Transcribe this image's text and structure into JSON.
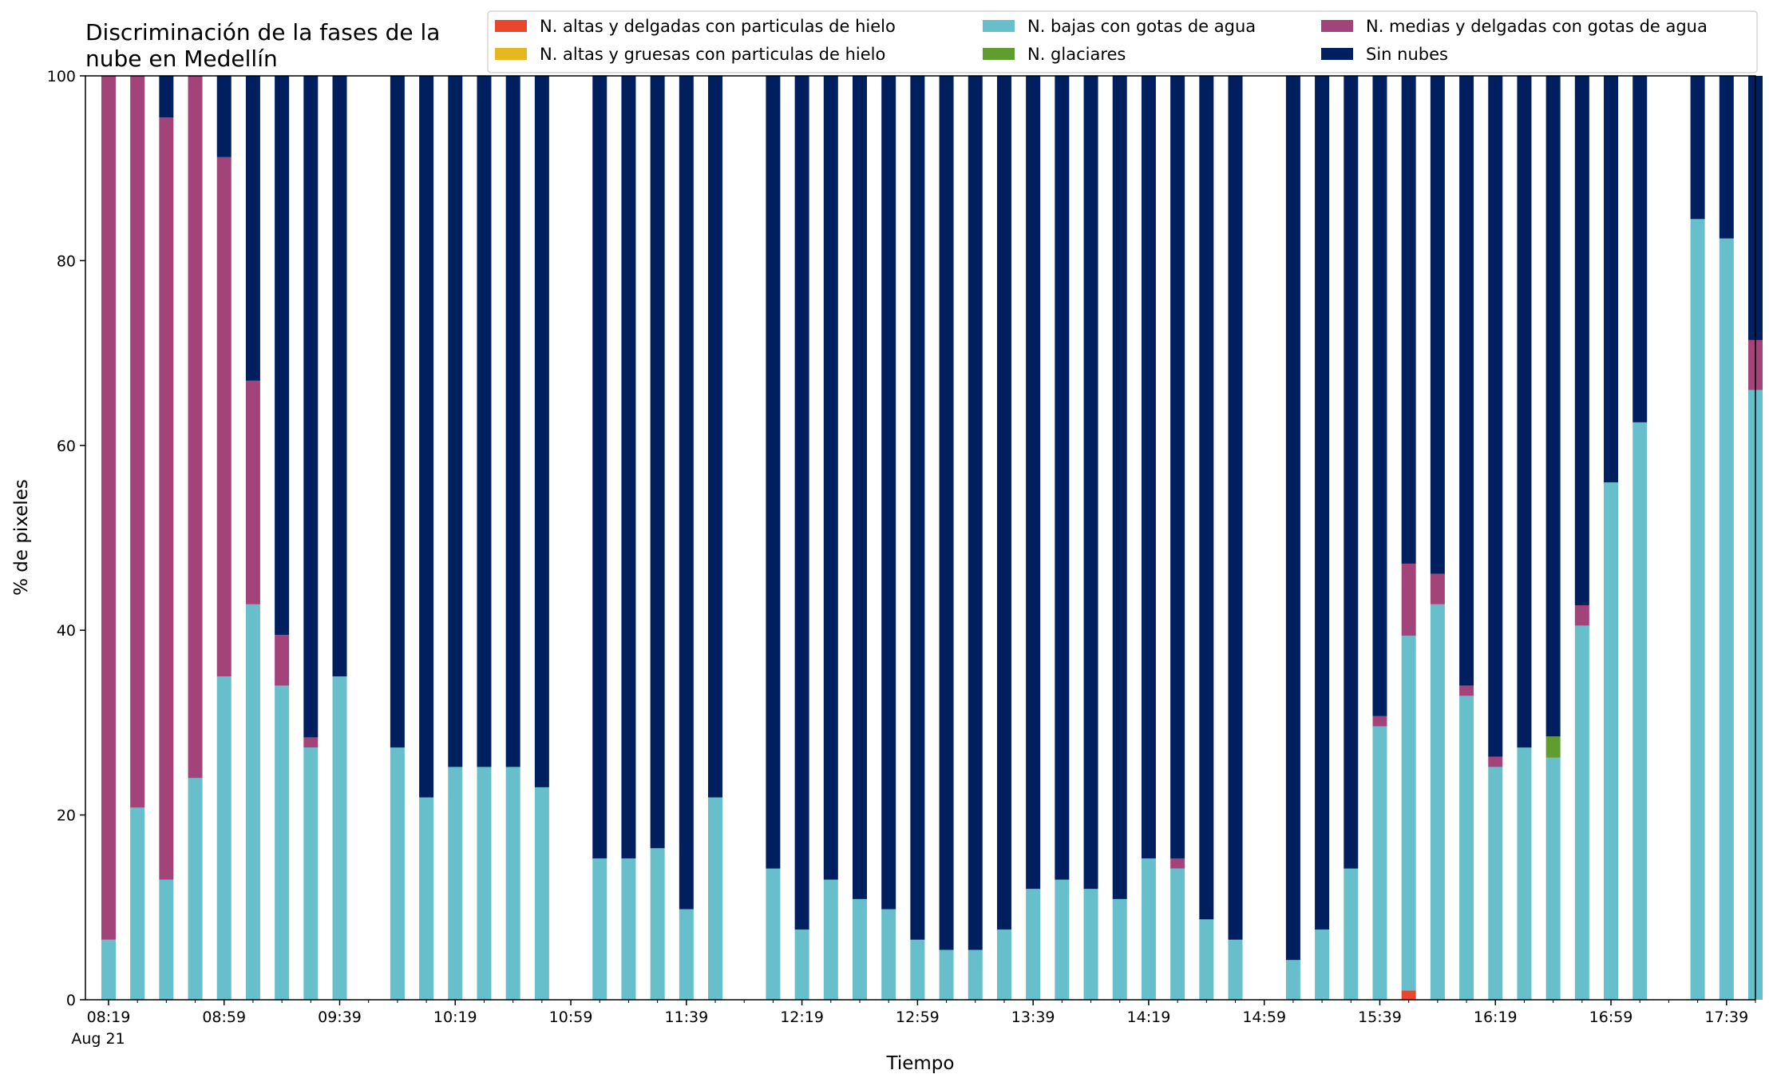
{
  "chart_data": {
    "type": "bar",
    "stacked": true,
    "title_lines": [
      "Discriminación de la fases de la",
      "nube en Medellín"
    ],
    "xlabel": "Tiempo",
    "ylabel": "% de pixeles",
    "ylim": [
      0,
      100
    ],
    "yticks": [
      0,
      20,
      40,
      60,
      80,
      100
    ],
    "grid": false,
    "legend_position": "top-right",
    "x_start_time": "08:19",
    "x_date_label": "Aug 21",
    "x_tick_labels": [
      "08:19",
      "08:59",
      "09:39",
      "10:19",
      "10:59",
      "11:39",
      "12:19",
      "12:59",
      "13:39",
      "14:19",
      "14:59",
      "15:39",
      "16:19",
      "16:59",
      "17:39"
    ],
    "x_time_range": [
      "08:11",
      "17:49"
    ],
    "x": [
      "08:19",
      "08:29",
      "08:39",
      "08:49",
      "08:59",
      "09:09",
      "09:19",
      "09:29",
      "09:39",
      "09:59",
      "10:09",
      "10:19",
      "10:29",
      "10:39",
      "10:49",
      "11:09",
      "11:19",
      "11:29",
      "11:39",
      "11:49",
      "12:09",
      "12:19",
      "12:29",
      "12:39",
      "12:49",
      "12:59",
      "13:09",
      "13:19",
      "13:29",
      "13:39",
      "13:49",
      "13:59",
      "14:09",
      "14:19",
      "14:29",
      "14:39",
      "14:49",
      "15:09",
      "15:19",
      "15:29",
      "15:39",
      "15:49",
      "15:59",
      "16:09",
      "16:19",
      "16:29",
      "16:39",
      "16:49",
      "16:59",
      "17:09",
      "17:29",
      "17:39",
      "17:49"
    ],
    "series": [
      {
        "name": "N. altas y delgadas con particulas de hielo",
        "color": "#e8472e",
        "values": [
          0,
          0,
          0,
          0,
          0,
          0,
          0,
          0,
          0,
          0,
          0,
          0,
          0,
          0,
          0,
          0,
          0,
          0,
          0,
          0,
          0,
          0,
          0,
          0,
          0,
          0,
          0,
          0,
          0,
          0,
          0,
          0,
          0,
          0,
          0,
          0,
          0,
          0,
          0,
          0,
          0,
          1,
          0,
          0,
          0,
          0,
          0,
          0,
          0,
          0,
          0,
          0,
          0
        ]
      },
      {
        "name": "N. altas y gruesas con particulas de hielo",
        "color": "#e5b81f",
        "values": [
          0,
          0,
          0,
          0,
          0,
          0,
          0,
          0,
          0,
          0,
          0,
          0,
          0,
          0,
          0,
          0,
          0,
          0,
          0,
          0,
          0,
          0,
          0,
          0,
          0,
          0,
          0,
          0,
          0,
          0,
          0,
          0,
          0,
          0,
          0,
          0,
          0,
          0,
          0,
          0,
          0,
          0,
          0,
          0,
          0,
          0,
          0,
          0,
          0,
          0,
          0,
          0,
          0
        ]
      },
      {
        "name": "N. bajas con gotas de agua",
        "color": "#66bfca",
        "values": [
          6.5,
          20.8,
          13,
          24,
          35,
          42.8,
          34,
          27.3,
          35,
          27.3,
          21.9,
          25.2,
          25.2,
          25.2,
          23,
          15.3,
          15.3,
          16.4,
          9.8,
          21.9,
          14.2,
          7.6,
          13,
          10.9,
          9.8,
          6.5,
          5.4,
          5.4,
          7.6,
          12,
          13,
          12,
          10.9,
          15.3,
          14.2,
          8.7,
          6.5,
          4.3,
          7.6,
          14.2,
          29.6,
          38.4,
          42.8,
          32.9,
          25.2,
          27.3,
          26.2,
          40.5,
          56,
          62.5,
          84.5,
          82.4,
          66
        ]
      },
      {
        "name": "N. glaciares",
        "color": "#5f9e2e",
        "values": [
          0,
          0,
          0,
          0,
          0,
          0,
          0,
          0,
          0,
          0,
          0,
          0,
          0,
          0,
          0,
          0,
          0,
          0,
          0,
          0,
          0,
          0,
          0,
          0,
          0,
          0,
          0,
          0,
          0,
          0,
          0,
          0,
          0,
          0,
          0,
          0,
          0,
          0,
          0,
          0,
          0,
          0,
          0,
          0,
          0,
          0,
          2.3,
          0,
          0,
          0,
          0,
          0,
          0
        ]
      },
      {
        "name": "N. medias y delgadas con gotas de agua",
        "color": "#a2447a",
        "values": [
          93.5,
          79.2,
          82.5,
          76,
          56.2,
          24.2,
          5.5,
          1.1,
          0,
          0,
          0,
          0,
          0,
          0,
          0,
          0,
          0,
          0,
          0,
          0,
          0,
          0,
          0,
          0,
          0,
          0,
          0,
          0,
          0,
          0,
          0,
          0,
          0,
          0,
          1.1,
          0,
          0,
          0,
          0,
          0,
          1.1,
          7.8,
          3.3,
          1.1,
          1.1,
          0,
          0,
          2.2,
          0,
          0,
          0,
          0,
          5.4
        ]
      },
      {
        "name": "Sin nubes",
        "color": "#001f5f",
        "values": [
          0,
          0,
          4.5,
          0,
          8.8,
          33,
          60.5,
          71.6,
          65,
          72.7,
          78.1,
          74.8,
          74.8,
          74.8,
          77,
          84.7,
          84.7,
          83.6,
          90.2,
          78.1,
          85.8,
          92.4,
          87,
          89.1,
          90.2,
          93.5,
          94.6,
          94.6,
          92.4,
          88,
          87,
          88,
          89.1,
          84.7,
          84.7,
          91.3,
          93.5,
          95.7,
          92.4,
          85.8,
          69.3,
          52.8,
          53.9,
          66,
          73.7,
          72.7,
          71.5,
          57.3,
          44,
          37.5,
          15.5,
          17.6,
          28.6
        ]
      }
    ]
  }
}
